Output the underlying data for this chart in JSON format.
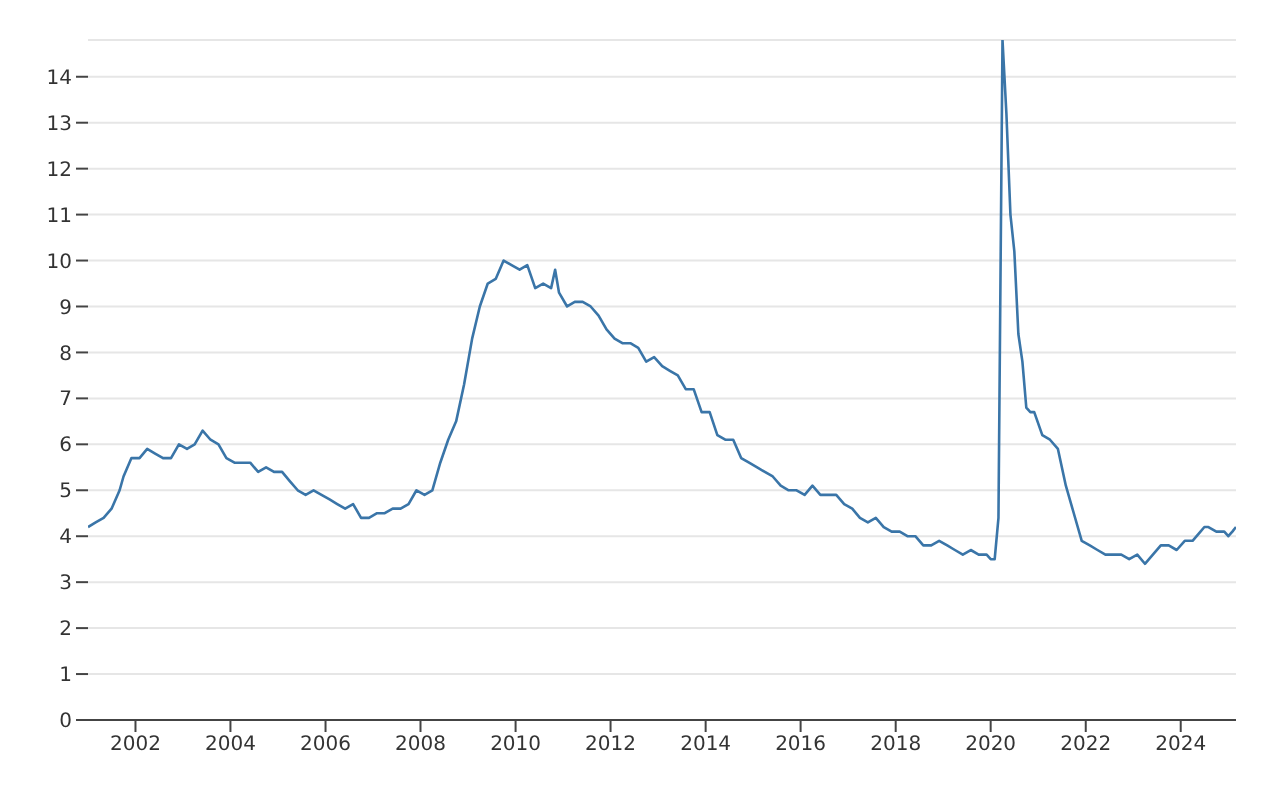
{
  "chart_data": {
    "type": "line",
    "xlim": [
      "2001-01",
      "2025-03"
    ],
    "xticks": [
      "2002",
      "2004",
      "2006",
      "2008",
      "2010",
      "2012",
      "2014",
      "2016",
      "2018",
      "2020",
      "2022",
      "2024"
    ],
    "ylim": [
      0,
      14.8
    ],
    "yticks": [
      0,
      1,
      2,
      3,
      4,
      5,
      6,
      7,
      8,
      9,
      10,
      11,
      12,
      13,
      14
    ],
    "grid": "y",
    "marker": "none",
    "line_style": "solid",
    "x": [
      "2001-01",
      "2001-03",
      "2001-05",
      "2001-07",
      "2001-09",
      "2001-10",
      "2001-12",
      "2002-02",
      "2002-04",
      "2002-06",
      "2002-08",
      "2002-10",
      "2002-12",
      "2003-02",
      "2003-04",
      "2003-06",
      "2003-08",
      "2003-10",
      "2003-12",
      "2004-02",
      "2004-04",
      "2004-06",
      "2004-08",
      "2004-10",
      "2004-12",
      "2005-02",
      "2005-04",
      "2005-06",
      "2005-08",
      "2005-10",
      "2005-12",
      "2006-02",
      "2006-04",
      "2006-06",
      "2006-08",
      "2006-10",
      "2006-12",
      "2007-02",
      "2007-04",
      "2007-06",
      "2007-08",
      "2007-10",
      "2007-12",
      "2008-02",
      "2008-04",
      "2008-06",
      "2008-08",
      "2008-10",
      "2008-12",
      "2009-02",
      "2009-04",
      "2009-06",
      "2009-08",
      "2009-10",
      "2009-12",
      "2010-02",
      "2010-04",
      "2010-06",
      "2010-08",
      "2010-10",
      "2010-11",
      "2010-12",
      "2011-02",
      "2011-04",
      "2011-06",
      "2011-08",
      "2011-10",
      "2011-12",
      "2012-02",
      "2012-04",
      "2012-06",
      "2012-08",
      "2012-10",
      "2012-12",
      "2013-02",
      "2013-04",
      "2013-06",
      "2013-08",
      "2013-10",
      "2013-12",
      "2014-02",
      "2014-04",
      "2014-06",
      "2014-08",
      "2014-10",
      "2014-12",
      "2015-02",
      "2015-04",
      "2015-06",
      "2015-08",
      "2015-10",
      "2015-12",
      "2016-02",
      "2016-04",
      "2016-06",
      "2016-08",
      "2016-10",
      "2016-12",
      "2017-02",
      "2017-04",
      "2017-06",
      "2017-08",
      "2017-10",
      "2017-12",
      "2018-02",
      "2018-04",
      "2018-06",
      "2018-08",
      "2018-10",
      "2018-12",
      "2019-02",
      "2019-04",
      "2019-06",
      "2019-08",
      "2019-10",
      "2019-12",
      "2020-01",
      "2020-02",
      "2020-03",
      "2020-04",
      "2020-05",
      "2020-06",
      "2020-07",
      "2020-08",
      "2020-09",
      "2020-10",
      "2020-11",
      "2020-12",
      "2021-02",
      "2021-04",
      "2021-06",
      "2021-08",
      "2021-10",
      "2021-12",
      "2022-02",
      "2022-04",
      "2022-06",
      "2022-08",
      "2022-10",
      "2022-12",
      "2023-02",
      "2023-04",
      "2023-06",
      "2023-08",
      "2023-10",
      "2023-12",
      "2024-02",
      "2024-04",
      "2024-06",
      "2024-07",
      "2024-08",
      "2024-10",
      "2024-12",
      "2025-01",
      "2025-02",
      "2025-03"
    ],
    "series": [
      {
        "color": "#3a75a8",
        "values": [
          4.2,
          4.3,
          4.4,
          4.6,
          5.0,
          5.3,
          5.7,
          5.7,
          5.9,
          5.8,
          5.7,
          5.7,
          6.0,
          5.9,
          6.0,
          6.3,
          6.1,
          6.0,
          5.7,
          5.6,
          5.6,
          5.6,
          5.4,
          5.5,
          5.4,
          5.4,
          5.2,
          5.0,
          4.9,
          5.0,
          4.9,
          4.8,
          4.7,
          4.6,
          4.7,
          4.4,
          4.4,
          4.5,
          4.5,
          4.6,
          4.6,
          4.7,
          5.0,
          4.9,
          5.0,
          5.6,
          6.1,
          6.5,
          7.3,
          8.3,
          9.0,
          9.5,
          9.6,
          10.0,
          9.9,
          9.8,
          9.9,
          9.4,
          9.5,
          9.4,
          9.8,
          9.3,
          9.0,
          9.1,
          9.1,
          9.0,
          8.8,
          8.5,
          8.3,
          8.2,
          8.2,
          8.1,
          7.8,
          7.9,
          7.7,
          7.6,
          7.5,
          7.2,
          7.2,
          6.7,
          6.7,
          6.2,
          6.1,
          6.1,
          5.7,
          5.6,
          5.5,
          5.4,
          5.3,
          5.1,
          5.0,
          5.0,
          4.9,
          5.1,
          4.9,
          4.9,
          4.9,
          4.7,
          4.6,
          4.4,
          4.3,
          4.4,
          4.2,
          4.1,
          4.1,
          4.0,
          4.0,
          3.8,
          3.8,
          3.9,
          3.8,
          3.7,
          3.6,
          3.7,
          3.6,
          3.6,
          3.5,
          3.5,
          4.4,
          14.8,
          13.2,
          11.0,
          10.2,
          8.4,
          7.8,
          6.8,
          6.7,
          6.7,
          6.2,
          6.1,
          5.9,
          5.1,
          4.5,
          3.9,
          3.8,
          3.7,
          3.6,
          3.6,
          3.6,
          3.5,
          3.6,
          3.4,
          3.6,
          3.8,
          3.8,
          3.7,
          3.9,
          3.9,
          4.1,
          4.2,
          4.2,
          4.1,
          4.1,
          4.0,
          4.1,
          4.2
        ]
      }
    ]
  }
}
